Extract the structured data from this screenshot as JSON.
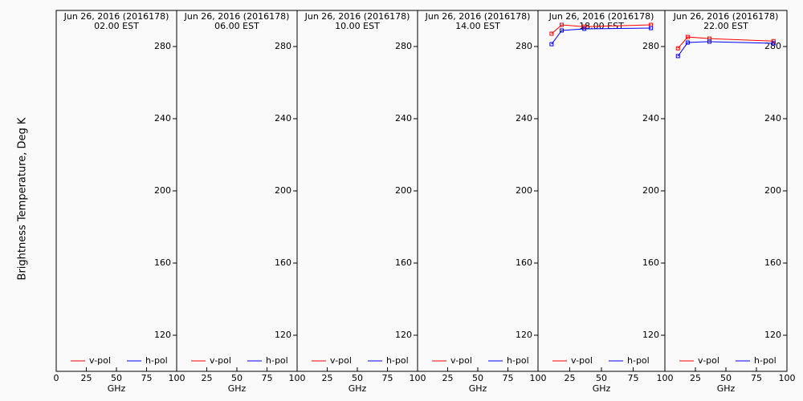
{
  "chart_data": [
    {
      "type": "line",
      "title": "Jun 26, 2016 (2016178)",
      "subtitle": "02.00 EST",
      "ylabel": "Brightness Temperature, Deg K",
      "xlabel": "GHz",
      "x": [
        10.7,
        18.7,
        36.5,
        89
      ],
      "series": [
        {
          "name": "v-pol",
          "color": "#ff0000",
          "values": [
            null,
            null,
            null,
            null
          ]
        },
        {
          "name": "h-pol",
          "color": "#0000ff",
          "values": [
            null,
            null,
            null,
            null
          ]
        }
      ],
      "xlim": [
        0,
        100
      ],
      "xticks": [
        0,
        25,
        50,
        75,
        100
      ],
      "ylim": [
        100,
        300
      ],
      "yticks": [
        120,
        160,
        200,
        240,
        280
      ]
    },
    {
      "type": "line",
      "title": "Jun 26, 2016 (2016178)",
      "subtitle": "06.00 EST",
      "xlabel": "GHz",
      "x": [
        10.7,
        18.7,
        36.5,
        89
      ],
      "series": [
        {
          "name": "v-pol",
          "color": "#ff0000",
          "values": [
            null,
            null,
            null,
            null
          ]
        },
        {
          "name": "h-pol",
          "color": "#0000ff",
          "values": [
            null,
            null,
            null,
            null
          ]
        }
      ],
      "xlim": [
        0,
        100
      ],
      "xticks": [
        25,
        50,
        75,
        100
      ],
      "ylim": [
        100,
        300
      ],
      "yticks": [
        120,
        160,
        200,
        240,
        280
      ]
    },
    {
      "type": "line",
      "title": "Jun 26, 2016 (2016178)",
      "subtitle": "10.00 EST",
      "xlabel": "GHz",
      "x": [
        10.7,
        18.7,
        36.5,
        89
      ],
      "series": [
        {
          "name": "v-pol",
          "color": "#ff0000",
          "values": [
            null,
            null,
            null,
            null
          ]
        },
        {
          "name": "h-pol",
          "color": "#0000ff",
          "values": [
            null,
            null,
            null,
            null
          ]
        }
      ],
      "xlim": [
        0,
        100
      ],
      "xticks": [
        25,
        50,
        75,
        100
      ],
      "ylim": [
        100,
        300
      ],
      "yticks": [
        120,
        160,
        200,
        240,
        280
      ]
    },
    {
      "type": "line",
      "title": "Jun 26, 2016 (2016178)",
      "subtitle": "14.00 EST",
      "xlabel": "GHz",
      "x": [
        10.7,
        18.7,
        36.5,
        89
      ],
      "series": [
        {
          "name": "v-pol",
          "color": "#ff0000",
          "values": [
            null,
            null,
            null,
            null
          ]
        },
        {
          "name": "h-pol",
          "color": "#0000ff",
          "values": [
            null,
            null,
            null,
            null
          ]
        }
      ],
      "xlim": [
        0,
        100
      ],
      "xticks": [
        25,
        50,
        75,
        100
      ],
      "ylim": [
        100,
        300
      ],
      "yticks": [
        120,
        160,
        200,
        240,
        280
      ]
    },
    {
      "type": "line",
      "title": "Jun 26, 2016 (2016178)",
      "subtitle": "18.00 EST",
      "xlabel": "GHz",
      "x": [
        10.7,
        18.7,
        36.5,
        89
      ],
      "series": [
        {
          "name": "v-pol",
          "color": "#ff0000",
          "values": [
            287.1,
            292,
            291,
            292
          ]
        },
        {
          "name": "h-pol",
          "color": "#0000ff",
          "values": [
            281.3,
            288.9,
            289.8,
            290.2
          ]
        }
      ],
      "xlim": [
        0,
        100
      ],
      "xticks": [
        25,
        50,
        75,
        100
      ],
      "ylim": [
        100,
        300
      ],
      "yticks": [
        120,
        160,
        200,
        240,
        280
      ]
    },
    {
      "type": "line",
      "title": "Jun 26, 2016 (2016178)",
      "subtitle": "22.00 EST",
      "xlabel": "GHz",
      "x": [
        10.7,
        18.7,
        36.5,
        89
      ],
      "series": [
        {
          "name": "v-pol",
          "color": "#ff0000",
          "values": [
            279,
            285.3,
            284.4,
            283
          ]
        },
        {
          "name": "h-pol",
          "color": "#0000ff",
          "values": [
            274.7,
            282.2,
            282.7,
            281.8
          ]
        }
      ],
      "xlim": [
        0,
        100
      ],
      "xticks": [
        25,
        50,
        75,
        100
      ],
      "ylim": [
        100,
        300
      ],
      "yticks": [
        120,
        160,
        200,
        240,
        280
      ]
    }
  ]
}
